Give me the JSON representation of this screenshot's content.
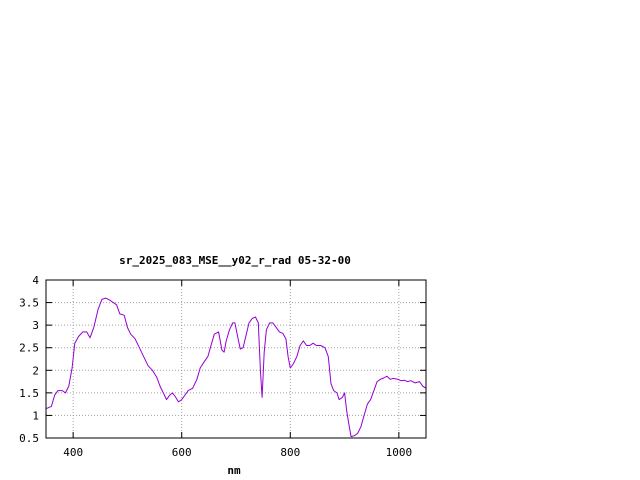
{
  "chart_data": {
    "type": "line",
    "title": "sr_2025_083_MSE__y02_r_rad 05-32-00",
    "xlabel": "nm",
    "ylabel": "",
    "xlim": [
      350,
      1050
    ],
    "ylim": [
      0.5,
      4
    ],
    "xticks": [
      400,
      600,
      800,
      1000
    ],
    "yticks": [
      0.5,
      1,
      1.5,
      2,
      2.5,
      3,
      3.5,
      4
    ],
    "grid": true,
    "series": [
      {
        "color": "#9400d3",
        "points": [
          [
            350,
            1.15
          ],
          [
            360,
            1.2
          ],
          [
            366,
            1.45
          ],
          [
            372,
            1.55
          ],
          [
            380,
            1.55
          ],
          [
            386,
            1.5
          ],
          [
            392,
            1.65
          ],
          [
            398,
            2.05
          ],
          [
            403,
            2.6
          ],
          [
            410,
            2.75
          ],
          [
            418,
            2.85
          ],
          [
            425,
            2.85
          ],
          [
            431,
            2.72
          ],
          [
            438,
            2.95
          ],
          [
            446,
            3.35
          ],
          [
            453,
            3.57
          ],
          [
            460,
            3.6
          ],
          [
            468,
            3.55
          ],
          [
            474,
            3.5
          ],
          [
            480,
            3.45
          ],
          [
            486,
            3.25
          ],
          [
            494,
            3.22
          ],
          [
            500,
            2.95
          ],
          [
            506,
            2.8
          ],
          [
            514,
            2.7
          ],
          [
            522,
            2.5
          ],
          [
            530,
            2.3
          ],
          [
            538,
            2.1
          ],
          [
            546,
            2.0
          ],
          [
            554,
            1.85
          ],
          [
            560,
            1.65
          ],
          [
            566,
            1.5
          ],
          [
            572,
            1.35
          ],
          [
            578,
            1.45
          ],
          [
            583,
            1.5
          ],
          [
            588,
            1.42
          ],
          [
            594,
            1.3
          ],
          [
            600,
            1.35
          ],
          [
            606,
            1.45
          ],
          [
            612,
            1.55
          ],
          [
            620,
            1.6
          ],
          [
            628,
            1.8
          ],
          [
            634,
            2.05
          ],
          [
            642,
            2.2
          ],
          [
            648,
            2.3
          ],
          [
            654,
            2.55
          ],
          [
            660,
            2.8
          ],
          [
            668,
            2.85
          ],
          [
            674,
            2.45
          ],
          [
            678,
            2.4
          ],
          [
            682,
            2.65
          ],
          [
            688,
            2.9
          ],
          [
            694,
            3.05
          ],
          [
            698,
            3.05
          ],
          [
            703,
            2.75
          ],
          [
            708,
            2.47
          ],
          [
            713,
            2.5
          ],
          [
            718,
            2.75
          ],
          [
            724,
            3.05
          ],
          [
            730,
            3.15
          ],
          [
            736,
            3.18
          ],
          [
            741,
            3.05
          ],
          [
            745,
            2.0
          ],
          [
            748,
            1.4
          ],
          [
            752,
            2.4
          ],
          [
            756,
            2.9
          ],
          [
            762,
            3.05
          ],
          [
            768,
            3.05
          ],
          [
            774,
            2.95
          ],
          [
            780,
            2.85
          ],
          [
            786,
            2.82
          ],
          [
            792,
            2.7
          ],
          [
            796,
            2.3
          ],
          [
            800,
            2.05
          ],
          [
            806,
            2.15
          ],
          [
            812,
            2.3
          ],
          [
            818,
            2.55
          ],
          [
            824,
            2.65
          ],
          [
            830,
            2.55
          ],
          [
            836,
            2.55
          ],
          [
            842,
            2.6
          ],
          [
            848,
            2.55
          ],
          [
            856,
            2.55
          ],
          [
            864,
            2.5
          ],
          [
            870,
            2.3
          ],
          [
            875,
            1.7
          ],
          [
            880,
            1.55
          ],
          [
            886,
            1.5
          ],
          [
            890,
            1.35
          ],
          [
            896,
            1.4
          ],
          [
            900,
            1.5
          ],
          [
            904,
            1.1
          ],
          [
            908,
            0.8
          ],
          [
            912,
            0.53
          ],
          [
            918,
            0.55
          ],
          [
            924,
            0.6
          ],
          [
            930,
            0.75
          ],
          [
            936,
            1.0
          ],
          [
            942,
            1.25
          ],
          [
            948,
            1.35
          ],
          [
            954,
            1.55
          ],
          [
            960,
            1.75
          ],
          [
            966,
            1.8
          ],
          [
            972,
            1.83
          ],
          [
            978,
            1.87
          ],
          [
            984,
            1.8
          ],
          [
            990,
            1.82
          ],
          [
            998,
            1.8
          ],
          [
            1004,
            1.77
          ],
          [
            1010,
            1.78
          ],
          [
            1016,
            1.75
          ],
          [
            1022,
            1.77
          ],
          [
            1030,
            1.72
          ],
          [
            1038,
            1.75
          ],
          [
            1044,
            1.65
          ],
          [
            1050,
            1.6
          ]
        ]
      }
    ]
  }
}
